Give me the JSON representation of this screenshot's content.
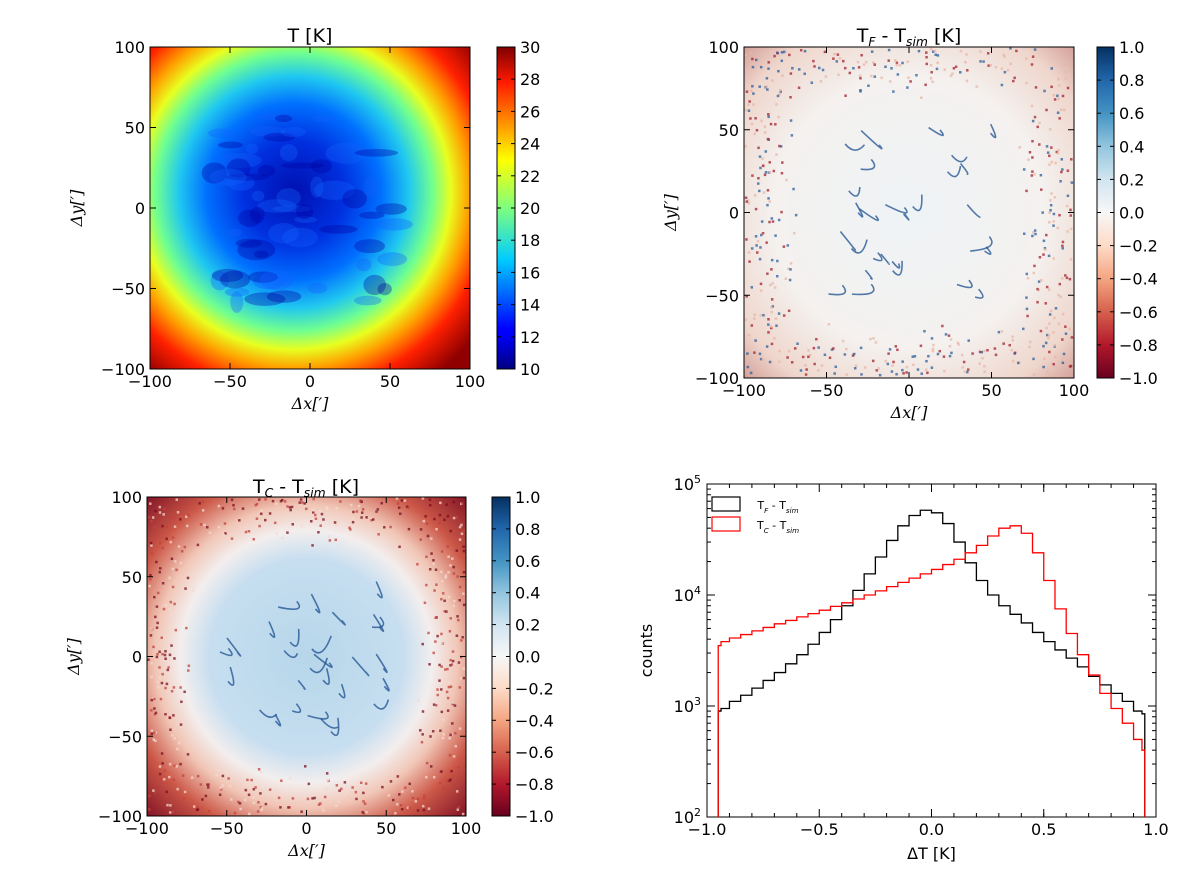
{
  "chart_data": [
    {
      "type": "heatmap",
      "title": "T [K]",
      "xlabel": "Δx[′]",
      "ylabel": "Δy[′]",
      "xlim": [
        -100,
        100
      ],
      "ylim": [
        -100,
        100
      ],
      "x_ticks": [
        "−100",
        "−50",
        "0",
        "50",
        "100"
      ],
      "y_ticks": [
        "−100",
        "−50",
        "0",
        "50",
        "100"
      ],
      "colormap": "jet",
      "colorbar": {
        "range": [
          10,
          30
        ],
        "ticks": [
          "10",
          "12",
          "14",
          "16",
          "18",
          "20",
          "22",
          "24",
          "26",
          "28",
          "30"
        ]
      }
    },
    {
      "type": "heatmap",
      "title": "T_F - T_sim [K]",
      "xlabel": "Δx[′]",
      "ylabel": "Δy[′]",
      "xlim": [
        -100,
        100
      ],
      "ylim": [
        -100,
        100
      ],
      "x_ticks": [
        "−100",
        "−50",
        "0",
        "50",
        "100"
      ],
      "y_ticks": [
        "−100",
        "−50",
        "0",
        "50",
        "100"
      ],
      "colormap": "RdBu",
      "colorbar": {
        "range": [
          -1.0,
          1.0
        ],
        "ticks": [
          "−1.0",
          "−0.8",
          "−0.6",
          "−0.4",
          "−0.2",
          "0.0",
          "0.2",
          "0.4",
          "0.6",
          "0.8",
          "1.0"
        ]
      }
    },
    {
      "type": "heatmap",
      "title": "T_C - T_sim [K]",
      "xlabel": "Δx[′]",
      "ylabel": "Δy[′]",
      "xlim": [
        -100,
        100
      ],
      "ylim": [
        -100,
        100
      ],
      "x_ticks": [
        "−100",
        "−50",
        "0",
        "50",
        "100"
      ],
      "y_ticks": [
        "−100",
        "−50",
        "0",
        "50",
        "100"
      ],
      "colormap": "RdBu",
      "colorbar": {
        "range": [
          -1.0,
          1.0
        ],
        "ticks": [
          "−1.0",
          "−0.8",
          "−0.6",
          "−0.4",
          "−0.2",
          "0.0",
          "0.2",
          "0.4",
          "0.6",
          "0.8",
          "1.0"
        ]
      }
    },
    {
      "type": "line",
      "drawstyle": "steps",
      "xlabel": "ΔT [K]",
      "ylabel": "counts",
      "xlim": [
        -1.0,
        1.0
      ],
      "ylim": [
        100,
        100000
      ],
      "yscale": "log",
      "x_ticks": [
        "−1.0",
        "−0.5",
        "0.0",
        "0.5",
        "1.0"
      ],
      "legend_position": "upper-left",
      "x": [
        -0.95,
        -0.925,
        -0.875,
        -0.825,
        -0.775,
        -0.725,
        -0.675,
        -0.625,
        -0.575,
        -0.525,
        -0.475,
        -0.425,
        -0.375,
        -0.325,
        -0.275,
        -0.225,
        -0.175,
        -0.125,
        -0.075,
        -0.025,
        0.025,
        0.075,
        0.125,
        0.175,
        0.225,
        0.275,
        0.325,
        0.375,
        0.425,
        0.475,
        0.525,
        0.575,
        0.625,
        0.675,
        0.725,
        0.775,
        0.825,
        0.875,
        0.925,
        0.95
      ],
      "series": [
        {
          "name": "T_F - T_sim",
          "color": "#000000",
          "values": [
            900,
            950,
            1100,
            1250,
            1450,
            1700,
            2000,
            2400,
            2900,
            3600,
            4600,
            6000,
            8000,
            11000,
            15500,
            22000,
            31000,
            42000,
            52000,
            58000,
            55000,
            44000,
            30000,
            19500,
            13500,
            10000,
            8000,
            6700,
            5600,
            4600,
            3800,
            3200,
            2700,
            2250,
            1850,
            1550,
            1300,
            1100,
            900,
            850
          ]
        },
        {
          "name": "T_C - T_sim",
          "color": "#ff0000",
          "values": [
            3500,
            3800,
            4100,
            4400,
            4750,
            5100,
            5500,
            5900,
            6350,
            6800,
            7300,
            7900,
            8500,
            9200,
            10000,
            10900,
            11900,
            13000,
            14200,
            15500,
            17000,
            18800,
            21000,
            24000,
            28000,
            34000,
            40000,
            42000,
            36000,
            24000,
            13500,
            7500,
            4500,
            2900,
            1900,
            1300,
            950,
            700,
            500,
            400
          ]
        }
      ]
    }
  ]
}
